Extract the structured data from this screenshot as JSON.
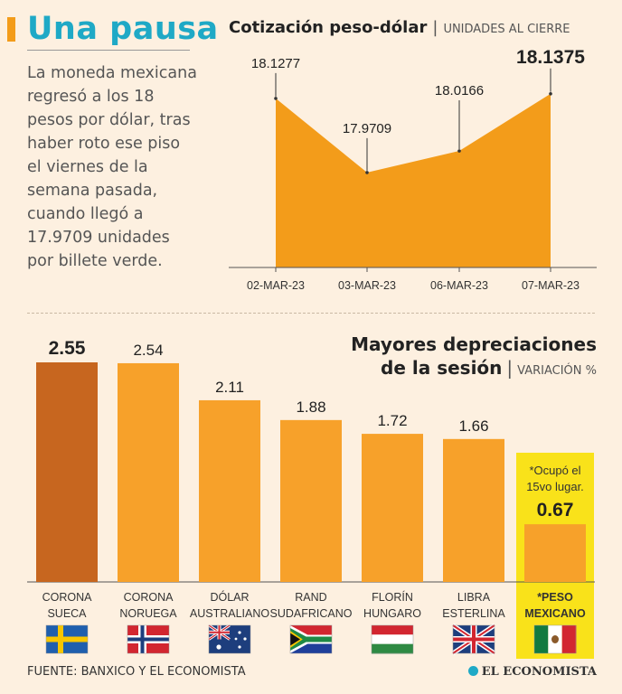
{
  "header": {
    "title": "Una pausa",
    "summary": "La moneda mexicana regresó a los 18 pesos por dólar, tras haber roto ese piso el viernes de la semana pasada, cuando llegó a 17.9709 unidades por billete verde."
  },
  "colors": {
    "accent": "#f39c1a",
    "title": "#1fa9c6",
    "bar": "#f7a12a",
    "bar_highlight": "#c7661f",
    "mexico_bg": "#f9e21a"
  },
  "chart_data": [
    {
      "type": "area",
      "title": "Cotización peso-dólar",
      "subtitle": "UNIDADES AL CIERRE",
      "categories": [
        "02-MAR-23",
        "03-MAR-23",
        "06-MAR-23",
        "07-MAR-23"
      ],
      "values": [
        18.1277,
        17.9709,
        18.0166,
        18.1375
      ],
      "value_labels": [
        "18.1277",
        "17.9709",
        "18.0166",
        "18.1375"
      ],
      "ylim": [
        17.77,
        18.16
      ],
      "grid": false
    },
    {
      "type": "bar",
      "title_line1": "Mayores depreciaciones",
      "title_line2": "de la sesión",
      "subtitle": "VARIACIÓN %",
      "categories": [
        {
          "line1": "CORONA",
          "line2": "SUECA",
          "flag": "sweden-flag"
        },
        {
          "line1": "CORONA",
          "line2": "NORUEGA",
          "flag": "norway-flag"
        },
        {
          "line1": "DÓLAR",
          "line2": "AUSTRALIANO",
          "flag": "australia-flag"
        },
        {
          "line1": "RAND",
          "line2": "SUDAFRICANO",
          "flag": "south-africa-flag"
        },
        {
          "line1": "FLORÍN",
          "line2": "HUNGARO",
          "flag": "hungary-flag"
        },
        {
          "line1": "LIBRA",
          "line2": "ESTERLINA",
          "flag": "uk-flag"
        },
        {
          "line1": "*PESO",
          "line2": "MEXICANO",
          "flag": "mexico-flag"
        }
      ],
      "values": [
        2.55,
        2.54,
        2.11,
        1.88,
        1.72,
        1.66,
        0.67
      ],
      "value_labels": [
        "2.55",
        "2.54",
        "2.11",
        "1.88",
        "1.72",
        "1.66",
        "0.67"
      ],
      "ylim": [
        0,
        2.55
      ],
      "note_line1": "*Ocupó el",
      "note_line2": "15vo lugar."
    }
  ],
  "footer": {
    "source": "FUENTE: BANXICO Y EL ECONOMISTA",
    "logo": "EL ECONOMISTA"
  }
}
